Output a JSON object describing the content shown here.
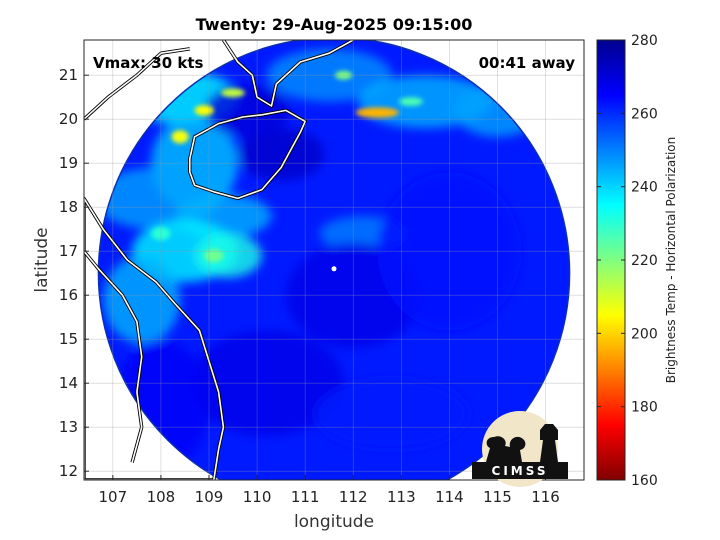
{
  "chart_data": {
    "type": "heatmap",
    "title": "Twenty: 29-Aug-2025 09:15:00",
    "xlabel": "longitude",
    "ylabel": "latitude",
    "xlim": [
      106.4,
      116.8
    ],
    "ylim": [
      11.8,
      21.8
    ],
    "xticks": [
      107,
      108,
      109,
      110,
      111,
      112,
      113,
      114,
      115,
      116
    ],
    "yticks": [
      12,
      13,
      14,
      15,
      16,
      17,
      18,
      19,
      20,
      21
    ],
    "grid": true,
    "annotations": {
      "vmax": "Vmax: 30 kts",
      "time_offset": "00:41 away"
    },
    "colorbar": {
      "label": "Brightness Temp - Horizontal Polarization",
      "min": 160,
      "max": 280,
      "ticks": [
        160,
        180,
        200,
        220,
        240,
        260,
        280
      ],
      "colormap": [
        "#800000",
        "#ff0000",
        "#ff8000",
        "#ffff00",
        "#80ff80",
        "#00ffff",
        "#0080ff",
        "#0000ff",
        "#00008f"
      ]
    },
    "swath": {
      "center": [
        111.6,
        16.5
      ],
      "radius_deg": 4.9,
      "background_value": 262
    },
    "storm_center": [
      111.6,
      16.6
    ]
  },
  "logo": {
    "text": "CIMSS"
  }
}
